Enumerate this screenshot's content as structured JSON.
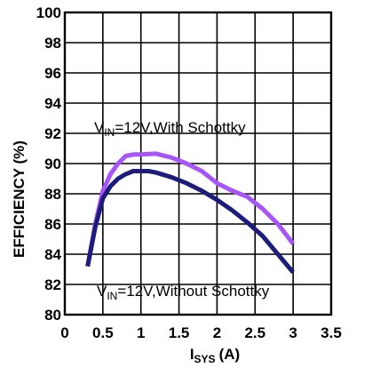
{
  "chart_data": {
    "type": "line",
    "title": "",
    "xlabel": {
      "main": "I",
      "sub": "SYS",
      "unit": "(A)"
    },
    "ylabel": "EFFICIENCY (%)",
    "xlim": [
      0,
      3.5
    ],
    "ylim": [
      80,
      100
    ],
    "x_ticks": [
      "0",
      "0.5",
      "1",
      "1.5",
      "2",
      "2.5",
      "3",
      "3.5"
    ],
    "y_ticks": [
      "80",
      "82",
      "84",
      "86",
      "88",
      "90",
      "92",
      "94",
      "96",
      "98",
      "100"
    ],
    "grid": true,
    "series": [
      {
        "name": "With Schottky",
        "color": "#a855f7",
        "x": [
          0.3,
          0.4,
          0.5,
          0.6,
          0.7,
          0.8,
          0.9,
          1.0,
          1.2,
          1.4,
          1.6,
          1.8,
          2.0,
          2.2,
          2.4,
          2.6,
          2.8,
          3.0
        ],
        "y": [
          83.2,
          86.0,
          88.2,
          89.3,
          90.0,
          90.5,
          90.6,
          90.6,
          90.65,
          90.4,
          90.0,
          89.5,
          88.7,
          88.2,
          87.8,
          87.0,
          86.0,
          84.7
        ]
      },
      {
        "name": "Without Schottky",
        "color": "#1c1c7a",
        "x": [
          0.3,
          0.4,
          0.5,
          0.6,
          0.7,
          0.8,
          0.9,
          1.0,
          1.1,
          1.2,
          1.4,
          1.6,
          1.8,
          2.0,
          2.2,
          2.4,
          2.6,
          2.8,
          3.0
        ],
        "y": [
          83.2,
          85.8,
          87.7,
          88.5,
          89.0,
          89.3,
          89.5,
          89.5,
          89.5,
          89.4,
          89.1,
          88.7,
          88.2,
          87.6,
          86.9,
          86.1,
          85.2,
          84.0,
          82.8
        ]
      }
    ],
    "annotations": [
      {
        "pre": "V",
        "sub": "IN",
        "post": "=12V,With Schottky"
      },
      {
        "pre": "V",
        "sub": "IN",
        "post": "=12V,Without  Schottky"
      }
    ]
  }
}
